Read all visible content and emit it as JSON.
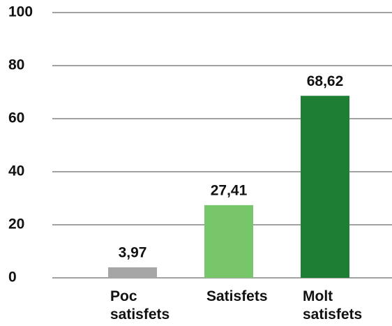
{
  "chart_data": {
    "type": "bar",
    "categories": [
      "Poc satisfets",
      "Satisfets",
      "Molt satisfets"
    ],
    "values": [
      3.97,
      27.41,
      68.62
    ],
    "value_labels": [
      "3,97",
      "27,41",
      "68,62"
    ],
    "colors": [
      "#a6a6a6",
      "#77c66a",
      "#1e7e34"
    ],
    "ylim": [
      0,
      100
    ],
    "yticks": [
      0,
      20,
      40,
      60,
      80,
      100
    ],
    "grid": true
  }
}
